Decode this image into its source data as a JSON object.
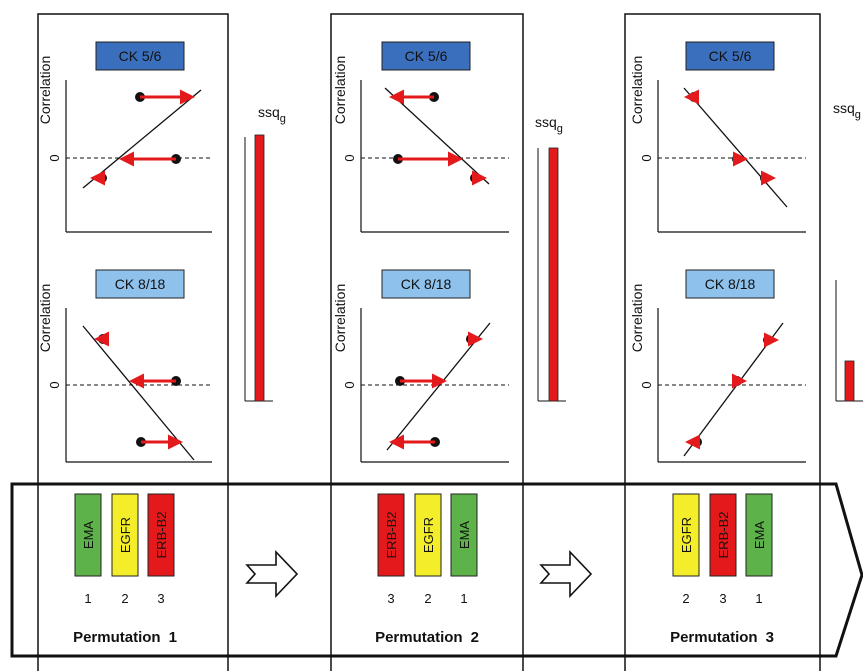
{
  "colors": {
    "ck56_box": "#3a6fbd",
    "ck818_box": "#8ec1ec",
    "arrow": "#e3191b",
    "point": "#111111",
    "bar": "#e3191b",
    "gene_ema": "#5db34a",
    "gene_egfr": "#f4ee2a",
    "gene_erbb2": "#e3191b",
    "frame": "#111111"
  },
  "labels": {
    "ck56": "CK 5/6",
    "ck818": "CK 8/18",
    "ylabel": "Correlation",
    "zero": "0",
    "ssq": "ssq",
    "ssq_sub": "g"
  },
  "permutations": [
    {
      "label": "Permutation",
      "number": "1",
      "genes": [
        {
          "name": "EMA",
          "color": "#5db34a",
          "index": "1"
        },
        {
          "name": "EGFR",
          "color": "#f4ee2a",
          "index": "2"
        },
        {
          "name": "ERB-B2",
          "color": "#e3191b",
          "index": "3"
        }
      ],
      "ssq_bar_fraction": 1.0
    },
    {
      "label": "Permutation",
      "number": "2",
      "genes": [
        {
          "name": "ERB-B2",
          "color": "#e3191b",
          "index": "3"
        },
        {
          "name": "EGFR",
          "color": "#f4ee2a",
          "index": "2"
        },
        {
          "name": "EMA",
          "color": "#5db34a",
          "index": "1"
        }
      ],
      "ssq_bar_fraction": 0.95
    },
    {
      "label": "Permutation",
      "number": "3",
      "genes": [
        {
          "name": "EGFR",
          "color": "#f4ee2a",
          "index": "2"
        },
        {
          "name": "ERB-B2",
          "color": "#e3191b",
          "index": "3"
        },
        {
          "name": "EMA",
          "color": "#5db34a",
          "index": "1"
        }
      ],
      "ssq_bar_fraction": 0.15
    }
  ]
}
